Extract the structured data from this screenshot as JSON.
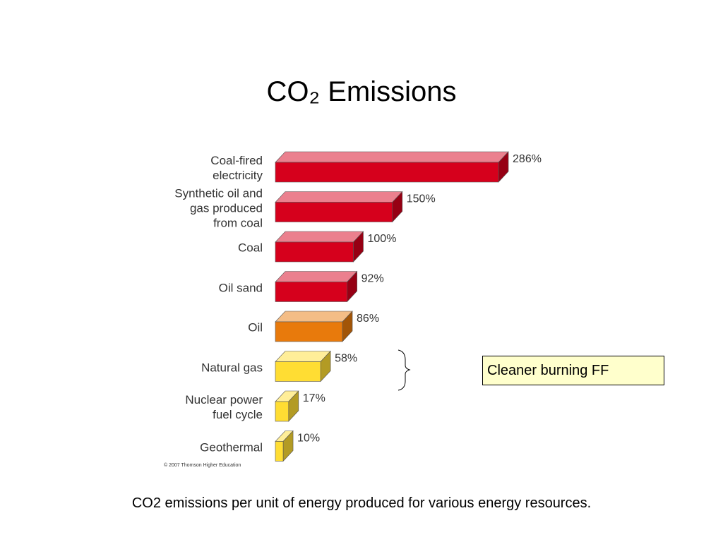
{
  "chart_data": {
    "type": "bar",
    "orientation": "horizontal",
    "title": "CO₂ Emissions",
    "categories": [
      "Coal-fired\nelectricity",
      "Synthetic oil and\ngas produced\nfrom coal",
      "Coal",
      "Oil sand",
      "Oil",
      "Natural gas",
      "Nuclear power\nfuel cycle",
      "Geothermal"
    ],
    "values": [
      286,
      150,
      100,
      92,
      86,
      58,
      17,
      10
    ],
    "value_labels": [
      "286%",
      "150%",
      "100%",
      "92%",
      "86%",
      "58%",
      "17%",
      "10%"
    ],
    "colors": [
      "#d6001c",
      "#d6001c",
      "#d6001c",
      "#d6001c",
      "#e87a0c",
      "#ffdd33",
      "#ffdd33",
      "#ffdd33"
    ],
    "annotation": "Cleaner burning FF",
    "credit": "© 2007 Thomson Higher Education",
    "caption": "CO2 emissions per unit of energy produced for various energy resources."
  }
}
